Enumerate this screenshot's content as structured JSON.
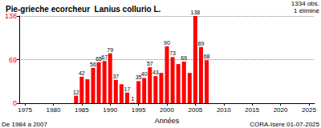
{
  "chart_data": {
    "type": "bar",
    "title": "Pie-grieche ecorcheur  Lanius collurio L.",
    "annotations": [
      "1334 obs.",
      "1 éliminé",
      "De 1984 a 2007",
      "CORA-Isere 01-07-2025"
    ],
    "xlabel": "Années",
    "x": [
      1984,
      1985,
      1986,
      1987,
      1988,
      1989,
      1990,
      1991,
      1992,
      1993,
      1994,
      1995,
      1996,
      1997,
      1998,
      1999,
      2000,
      2001,
      2002,
      2003,
      2004,
      2005,
      2006,
      2007
    ],
    "values": [
      12,
      42,
      38,
      56,
      65,
      67,
      79,
      37,
      30,
      17,
      1,
      35,
      40,
      57,
      43,
      48,
      90,
      73,
      62,
      66,
      48,
      138,
      89,
      68
    ],
    "value_labels": [
      "12",
      "42",
      null,
      "56",
      "65",
      "67",
      "79",
      "37",
      null,
      "17",
      "1",
      "35",
      "40",
      "57",
      "43",
      null,
      "90",
      "73",
      null,
      "66",
      null,
      "138",
      "89",
      "68"
    ],
    "color": "#ff0000",
    "xlim": [
      1974,
      2026
    ],
    "xticks": [
      1975,
      1980,
      1985,
      1990,
      1995,
      2000,
      2005,
      2010,
      2015,
      2020,
      2025
    ],
    "ylim": [
      0,
      138
    ],
    "yticks": [
      0,
      69,
      138
    ],
    "grid": true,
    "data_labels": true
  }
}
